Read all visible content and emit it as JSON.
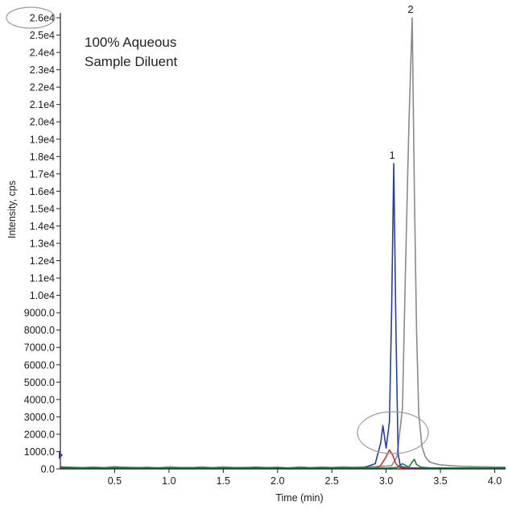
{
  "chart_data": {
    "type": "line",
    "title": "",
    "xlabel": "Time (min)",
    "ylabel": "Intensity, cps",
    "xlim": [
      0.0,
      4.1
    ],
    "ylim": [
      0,
      26000
    ],
    "grid": false,
    "x_ticks": [
      {
        "value": 0.5,
        "label": "0.5"
      },
      {
        "value": 1.0,
        "label": "1.0"
      },
      {
        "value": 1.5,
        "label": "1.5"
      },
      {
        "value": 2.0,
        "label": "2.0"
      },
      {
        "value": 2.5,
        "label": "2.5"
      },
      {
        "value": 3.0,
        "label": "3.0"
      },
      {
        "value": 3.5,
        "label": "3.5"
      },
      {
        "value": 4.0,
        "label": "4.0"
      }
    ],
    "y_ticks": [
      {
        "value": 0,
        "label": "0.0"
      },
      {
        "value": 1000,
        "label": "1000.0"
      },
      {
        "value": 2000,
        "label": "2000.0"
      },
      {
        "value": 3000,
        "label": "3000.0"
      },
      {
        "value": 4000,
        "label": "4000.0"
      },
      {
        "value": 5000,
        "label": "5000.0"
      },
      {
        "value": 6000,
        "label": "6000.0"
      },
      {
        "value": 7000,
        "label": "7000.0"
      },
      {
        "value": 8000,
        "label": "8000.0"
      },
      {
        "value": 9000,
        "label": "9000.0"
      },
      {
        "value": 10000,
        "label": "1.0e4"
      },
      {
        "value": 11000,
        "label": "1.1e4"
      },
      {
        "value": 12000,
        "label": "1.2e4"
      },
      {
        "value": 13000,
        "label": "1.3e4"
      },
      {
        "value": 14000,
        "label": "1.4e4"
      },
      {
        "value": 15000,
        "label": "1.5e4"
      },
      {
        "value": 16000,
        "label": "1.6e4"
      },
      {
        "value": 17000,
        "label": "1.7e4"
      },
      {
        "value": 18000,
        "label": "1.8e4"
      },
      {
        "value": 19000,
        "label": "1.9e4"
      },
      {
        "value": 20000,
        "label": "2.0e4"
      },
      {
        "value": 21000,
        "label": "2.1e4"
      },
      {
        "value": 22000,
        "label": "2.2e4"
      },
      {
        "value": 23000,
        "label": "2.3e4"
      },
      {
        "value": 24000,
        "label": "2.4e4"
      },
      {
        "value": 25000,
        "label": "2.5e4"
      },
      {
        "value": 26000,
        "label": "2.6e4"
      }
    ],
    "series": [
      {
        "color": "#8a8a8a",
        "x": [
          0.0,
          0.1,
          0.2,
          0.3,
          0.4,
          0.5,
          0.6,
          0.7,
          0.8,
          0.9,
          1.0,
          1.1,
          1.2,
          1.3,
          1.4,
          1.5,
          1.6,
          1.7,
          1.8,
          1.9,
          2.0,
          2.1,
          2.2,
          2.3,
          2.4,
          2.5,
          2.6,
          2.7,
          2.8,
          2.9,
          3.0,
          3.05,
          3.1,
          3.15,
          3.18,
          3.21,
          3.24,
          3.26,
          3.28,
          3.3,
          3.33,
          3.36,
          3.4,
          3.45,
          3.5,
          3.6,
          3.7,
          3.8,
          3.9,
          4.0,
          4.1
        ],
        "y": [
          120,
          90,
          60,
          110,
          70,
          130,
          80,
          60,
          100,
          70,
          120,
          80,
          60,
          110,
          70,
          120,
          80,
          60,
          100,
          70,
          100,
          60,
          120,
          70,
          100,
          80,
          120,
          90,
          110,
          130,
          160,
          180,
          700,
          3500,
          12000,
          20000,
          26000,
          16000,
          8000,
          3200,
          1300,
          700,
          400,
          300,
          230,
          180,
          150,
          130,
          120,
          110,
          100
        ]
      },
      {
        "color": "#2a3f9d",
        "x": [
          0.0,
          0.2,
          0.4,
          0.6,
          0.8,
          1.0,
          1.2,
          1.4,
          1.6,
          1.8,
          2.0,
          2.2,
          2.4,
          2.6,
          2.8,
          2.9,
          2.95,
          2.97,
          3.0,
          3.03,
          3.05,
          3.07,
          3.09,
          3.11,
          3.13,
          3.2,
          3.4,
          3.6,
          3.8,
          4.0,
          4.1
        ],
        "y": [
          50,
          40,
          60,
          30,
          50,
          40,
          60,
          30,
          50,
          40,
          60,
          30,
          50,
          40,
          80,
          300,
          1500,
          2500,
          1200,
          2700,
          9000,
          17600,
          8000,
          900,
          150,
          60,
          40,
          50,
          40,
          50,
          40
        ]
      },
      {
        "color": "#d32f2f",
        "x": [
          0.0,
          0.5,
          1.0,
          1.5,
          2.0,
          2.5,
          2.9,
          2.95,
          3.0,
          3.03,
          3.06,
          3.09,
          3.12,
          3.15,
          3.2,
          3.5,
          4.1
        ],
        "y": [
          20,
          30,
          20,
          30,
          20,
          30,
          40,
          200,
          700,
          1100,
          800,
          300,
          100,
          40,
          30,
          20,
          20
        ]
      },
      {
        "color": "#1f7a3a",
        "x": [
          0.0,
          0.3,
          0.6,
          0.9,
          1.2,
          1.5,
          1.8,
          2.1,
          2.4,
          2.7,
          3.0,
          3.1,
          3.15,
          3.18,
          3.21,
          3.24,
          3.26,
          3.28,
          3.32,
          3.4,
          3.7,
          4.1
        ],
        "y": [
          100,
          60,
          90,
          50,
          80,
          60,
          90,
          50,
          80,
          60,
          40,
          80,
          300,
          200,
          100,
          400,
          550,
          250,
          100,
          60,
          50,
          40
        ]
      }
    ],
    "peak_labels": [
      {
        "x": 3.07,
        "y": 17600,
        "text": "1"
      },
      {
        "x": 3.24,
        "y": 26000,
        "text": "2"
      }
    ],
    "annotations": [
      "100% Aqueous",
      "Sample Diluent"
    ]
  }
}
